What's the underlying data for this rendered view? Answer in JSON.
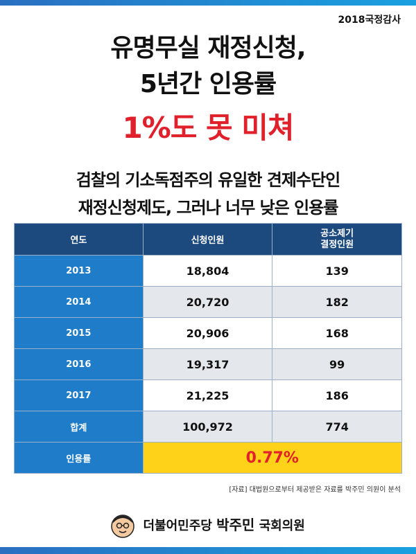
{
  "header": {
    "tag": "2018국정감사",
    "headline_line1": "유명무실 재정신청,",
    "headline_line2": "5년간 인용률",
    "headline_highlight": "1%도 못 미쳐",
    "sub_line1": "검찰의 기소독점주의 유일한 견제수단인",
    "sub_line2": "재정신청제도, 그러나 너무 낮은 인용률"
  },
  "table": {
    "headers": {
      "year": "연도",
      "applicants": "신청인원",
      "prosecution_line1": "공소제기",
      "prosecution_line2": "결정인원"
    },
    "rows": [
      {
        "year": "2013",
        "applicants": "18,804",
        "decided": "139"
      },
      {
        "year": "2014",
        "applicants": "20,720",
        "decided": "182"
      },
      {
        "year": "2015",
        "applicants": "20,906",
        "decided": "168"
      },
      {
        "year": "2016",
        "applicants": "19,317",
        "decided": "99"
      },
      {
        "year": "2017",
        "applicants": "21,225",
        "decided": "186"
      }
    ],
    "total": {
      "label": "합계",
      "applicants": "100,972",
      "decided": "774"
    },
    "rate": {
      "label": "인용률",
      "value": "0.77%"
    }
  },
  "source": "[자료] 대법원으로부터 제공받은 자료를 박주민 의원이 분석",
  "footer": {
    "party": "더불어민주당",
    "member": "박주민",
    "title": "국회의원"
  },
  "colors": {
    "header_bg": "#1d4a7e",
    "year_bg": "#1f7cc9",
    "highlight_red": "#e0202a",
    "rate_bg": "#ffd21a"
  }
}
